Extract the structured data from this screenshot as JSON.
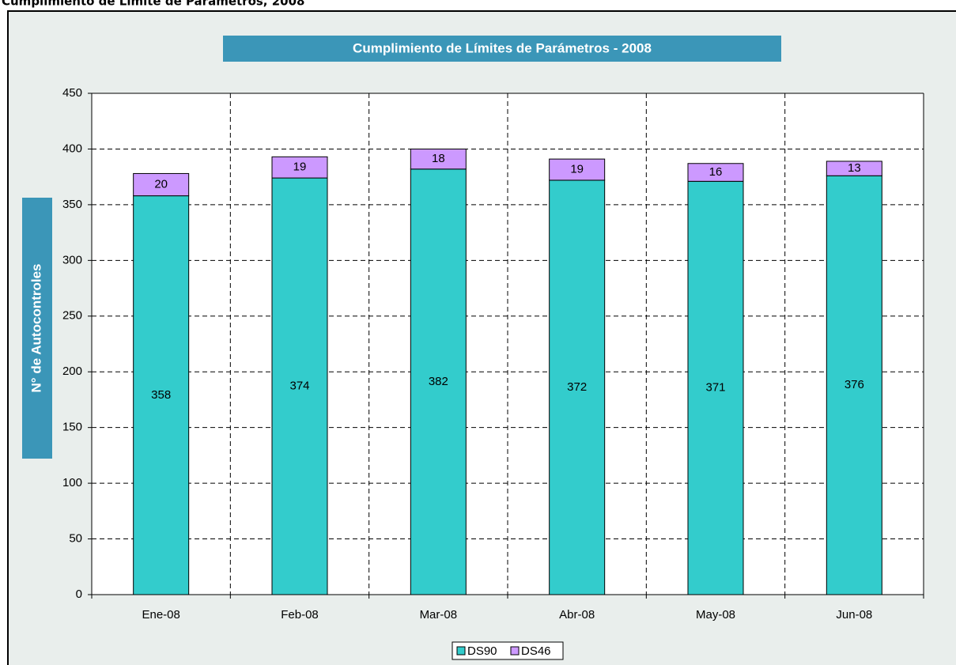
{
  "heading": "Cumplimiento de Límite de Parámetros, 2008",
  "chart_data": {
    "type": "bar",
    "stacked": true,
    "title": "Cumplimiento de Límites de Parámetros - 2008",
    "ylabel": "N° de Autocontroles",
    "categories": [
      "Ene-08",
      "Feb-08",
      "Mar-08",
      "Abr-08",
      "May-08",
      "Jun-08"
    ],
    "series": [
      {
        "name": "DS90",
        "color": "#33cccc",
        "values": [
          358,
          374,
          382,
          372,
          371,
          376
        ]
      },
      {
        "name": "DS46",
        "color": "#cc99ff",
        "values": [
          20,
          19,
          18,
          19,
          16,
          13
        ]
      }
    ],
    "ylim": [
      0,
      450
    ],
    "yticks": [
      0,
      50,
      100,
      150,
      200,
      250,
      300,
      350,
      400,
      450
    ],
    "grid": true,
    "legend": "bottom"
  }
}
